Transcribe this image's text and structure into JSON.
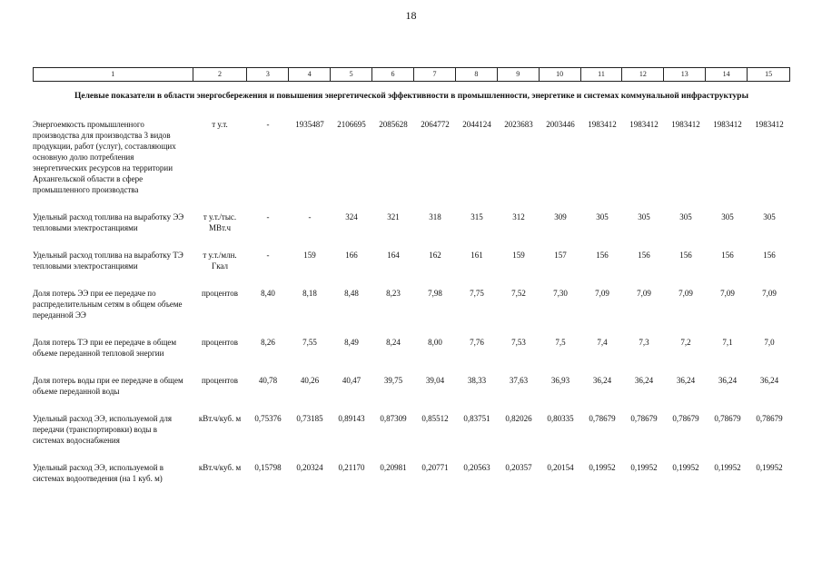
{
  "page": {
    "number": "18"
  },
  "table": {
    "column_numbers": [
      "1",
      "2",
      "3",
      "4",
      "5",
      "6",
      "7",
      "8",
      "9",
      "10",
      "11",
      "12",
      "13",
      "14",
      "15"
    ],
    "section_title": "Целевые показатели в области энергосбережения и повышения энергетической эффективности в промышленности, энергетике и системах коммунальной инфраструктуры",
    "rows": [
      {
        "name": "Энергоемкость промышленного производства для производства 3 видов продукции, работ (услуг), составляющих основную долю потребления энергетических ресурсов на территории Архангельской области в сфере промышленного производства",
        "unit": "т у.т.",
        "values": [
          "-",
          "1935487",
          "2106695",
          "2085628",
          "2064772",
          "2044124",
          "2023683",
          "2003446",
          "1983412",
          "1983412",
          "1983412",
          "1983412",
          "1983412"
        ]
      },
      {
        "name": "Удельный расход топлива на выработку ЭЭ тепловыми электростанциями",
        "unit": "т у.т./тыс. МВт.ч",
        "values": [
          "-",
          "-",
          "324",
          "321",
          "318",
          "315",
          "312",
          "309",
          "305",
          "305",
          "305",
          "305",
          "305"
        ]
      },
      {
        "name": "Удельный расход топлива на выработку ТЭ тепловыми электростанциями",
        "unit": "т у.т./млн. Гкал",
        "values": [
          "-",
          "159",
          "166",
          "164",
          "162",
          "161",
          "159",
          "157",
          "156",
          "156",
          "156",
          "156",
          "156"
        ]
      },
      {
        "name": "Доля потерь ЭЭ при ее передаче по распределительным сетям в общем объеме переданной ЭЭ",
        "unit": "процентов",
        "values": [
          "8,40",
          "8,18",
          "8,48",
          "8,23",
          "7,98",
          "7,75",
          "7,52",
          "7,30",
          "7,09",
          "7,09",
          "7,09",
          "7,09",
          "7,09"
        ]
      },
      {
        "name": "Доля потерь ТЭ при ее передаче в общем объеме переданной тепловой энергии",
        "unit": "процентов",
        "values": [
          "8,26",
          "7,55",
          "8,49",
          "8,24",
          "8,00",
          "7,76",
          "7,53",
          "7,5",
          "7,4",
          "7,3",
          "7,2",
          "7,1",
          "7,0"
        ]
      },
      {
        "name": "Доля потерь воды при ее передаче в общем объеме переданной воды",
        "unit": "процентов",
        "values": [
          "40,78",
          "40,26",
          "40,47",
          "39,75",
          "39,04",
          "38,33",
          "37,63",
          "36,93",
          "36,24",
          "36,24",
          "36,24",
          "36,24",
          "36,24"
        ]
      },
      {
        "name": "Удельный расход ЭЭ, используемой для передачи (транспортировки) воды в системах водоснабжения",
        "unit": "кВт.ч/куб. м",
        "values": [
          "0,75376",
          "0,73185",
          "0,89143",
          "0,87309",
          "0,85512",
          "0,83751",
          "0,82026",
          "0,80335",
          "0,78679",
          "0,78679",
          "0,78679",
          "0,78679",
          "0,78679"
        ]
      },
      {
        "name": "Удельный расход ЭЭ, используемой в системах водоотведения (на 1 куб. м)",
        "unit": "кВт.ч/куб. м",
        "values": [
          "0,15798",
          "0,20324",
          "0,21170",
          "0,20981",
          "0,20771",
          "0,20563",
          "0,20357",
          "0,20154",
          "0,19952",
          "0,19952",
          "0,19952",
          "0,19952",
          "0,19952"
        ]
      }
    ]
  }
}
